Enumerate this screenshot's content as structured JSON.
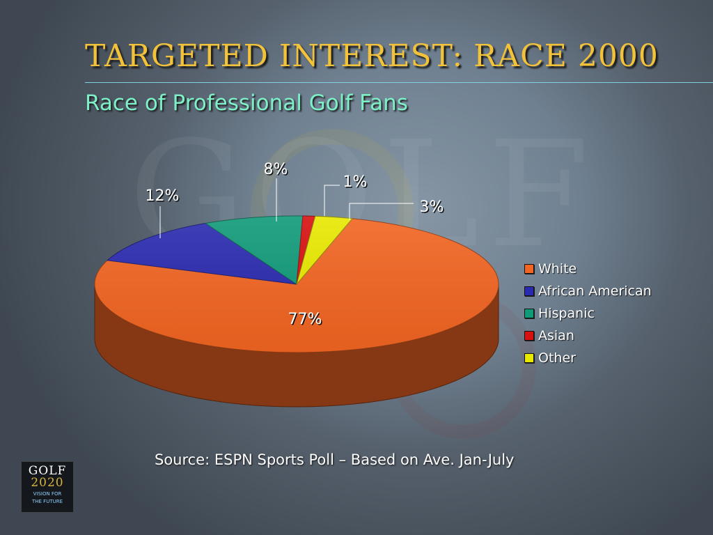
{
  "slide": {
    "title": "TARGETED INTEREST: RACE 2000",
    "subtitle": "Race of Professional Golf Fans",
    "source": "Source: ESPN Sports Poll – Based on Ave. Jan-July"
  },
  "logo": {
    "word": "GOLF",
    "year": "2020",
    "tagline_1": "VISION FOR",
    "tagline_2": "THE FUTURE"
  },
  "colors": {
    "title": "#f2c23a",
    "subtitle": "#7ef0c8"
  },
  "chart_data": {
    "type": "pie",
    "style": "3d",
    "legend_position": "right",
    "slices": [
      {
        "label": "White",
        "value": 77,
        "value_label": "77%",
        "color": "#f26522"
      },
      {
        "label": "African American",
        "value": 12,
        "value_label": "12%",
        "color": "#2a2ab0"
      },
      {
        "label": "Hispanic",
        "value": 8,
        "value_label": "8%",
        "color": "#109a78"
      },
      {
        "label": "Asian",
        "value": 1,
        "value_label": "1%",
        "color": "#d81010"
      },
      {
        "label": "Other",
        "value": 3,
        "value_label": "3%",
        "color": "#e8e800"
      }
    ]
  }
}
